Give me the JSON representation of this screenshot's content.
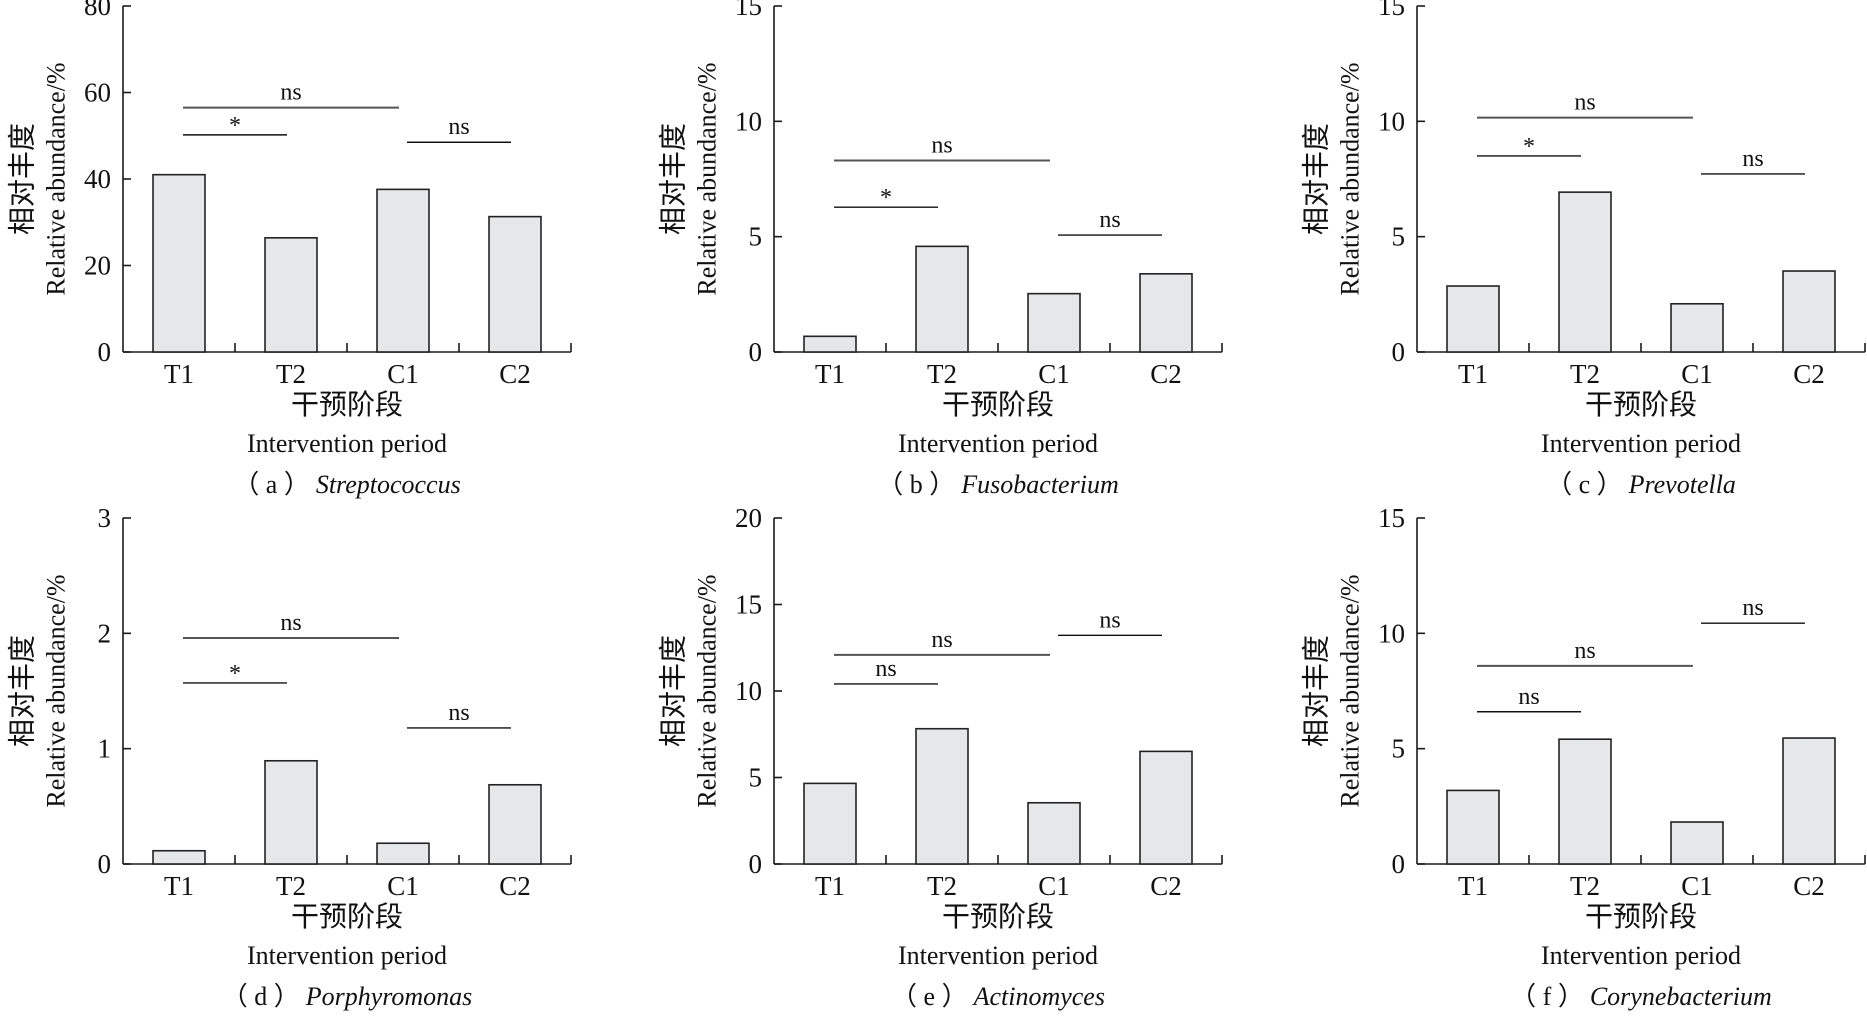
{
  "figure": {
    "bar_fill": "#e6e7e8",
    "bar_stroke": "#222222"
  },
  "chart_data": [
    {
      "type": "bar",
      "panel": "a",
      "caption_prefix": "（ a ）",
      "title": "Streptococcus",
      "xlabel_cn": "干预阶段",
      "xlabel": "Intervention period",
      "ylabel_cn": "相对丰度",
      "ylabel": "Relative abundance/%",
      "categories": [
        "T1",
        "T2",
        "C1",
        "C2"
      ],
      "values": [
        41.0,
        26.4,
        37.6,
        31.3
      ],
      "ylim": [
        0,
        80
      ],
      "yticks": [
        0,
        20,
        40,
        60,
        80
      ],
      "grid": false,
      "significance": [
        {
          "from": "T1",
          "to": "C1",
          "label": "ns",
          "y": 56.5
        },
        {
          "from": "T1",
          "to": "T2",
          "label": "*",
          "y": 50.2
        },
        {
          "from": "C1",
          "to": "C2",
          "label": "ns",
          "y": 48.5
        }
      ]
    },
    {
      "type": "bar",
      "panel": "b",
      "caption_prefix": "（ b ）",
      "title": "Fusobacterium",
      "xlabel_cn": "干预阶段",
      "xlabel": "Intervention period",
      "ylabel_cn": "相对丰度",
      "ylabel": "Relative abundance/%",
      "categories": [
        "T1",
        "T2",
        "C1",
        "C2"
      ],
      "values": [
        0.68,
        4.58,
        2.53,
        3.39
      ],
      "ylim": [
        0,
        15
      ],
      "yticks": [
        0,
        5,
        10,
        15
      ],
      "grid": false,
      "significance": [
        {
          "from": "T1",
          "to": "C1",
          "label": "ns",
          "y": 8.3
        },
        {
          "from": "T1",
          "to": "T2",
          "label": "*",
          "y": 6.28
        },
        {
          "from": "C1",
          "to": "C2",
          "label": "ns",
          "y": 5.07
        }
      ]
    },
    {
      "type": "bar",
      "panel": "c",
      "caption_prefix": "（ c ）",
      "title": "Prevotella",
      "xlabel_cn": "干预阶段",
      "xlabel": "Intervention period",
      "ylabel_cn": "相对丰度",
      "ylabel": "Relative abundance/%",
      "categories": [
        "T1",
        "T2",
        "C1",
        "C2"
      ],
      "values": [
        2.86,
        6.93,
        2.09,
        3.51
      ],
      "ylim": [
        0,
        15
      ],
      "yticks": [
        0,
        5,
        10,
        15
      ],
      "grid": false,
      "significance": [
        {
          "from": "T1",
          "to": "C1",
          "label": "ns",
          "y": 10.16
        },
        {
          "from": "T1",
          "to": "T2",
          "label": "*",
          "y": 8.5
        },
        {
          "from": "C1",
          "to": "C2",
          "label": "ns",
          "y": 7.72
        }
      ]
    },
    {
      "type": "bar",
      "panel": "d",
      "caption_prefix": "（ d ）",
      "title": "Porphyromonas",
      "xlabel_cn": "干预阶段",
      "xlabel": "Intervention period",
      "ylabel_cn": "相对丰度",
      "ylabel": "Relative abundance/%",
      "categories": [
        "T1",
        "T2",
        "C1",
        "C2"
      ],
      "values": [
        0.115,
        0.895,
        0.18,
        0.687
      ],
      "ylim": [
        0,
        3
      ],
      "yticks": [
        0,
        1,
        2,
        3
      ],
      "grid": false,
      "significance": [
        {
          "from": "T1",
          "to": "C1",
          "label": "ns",
          "y": 1.96
        },
        {
          "from": "T1",
          "to": "T2",
          "label": "*",
          "y": 1.57
        },
        {
          "from": "C1",
          "to": "C2",
          "label": "ns",
          "y": 1.18
        }
      ]
    },
    {
      "type": "bar",
      "panel": "e",
      "caption_prefix": "（ e ）",
      "title": "Actinomyces",
      "xlabel_cn": "干预阶段",
      "xlabel": "Intervention period",
      "ylabel_cn": "相对丰度",
      "ylabel": "Relative abundance/%",
      "categories": [
        "T1",
        "T2",
        "C1",
        "C2"
      ],
      "values": [
        4.66,
        7.82,
        3.54,
        6.51
      ],
      "ylim": [
        0,
        20
      ],
      "yticks": [
        0,
        5,
        10,
        15,
        20
      ],
      "grid": false,
      "significance": [
        {
          "from": "C1",
          "to": "C2",
          "label": "ns",
          "y": 13.22
        },
        {
          "from": "T1",
          "to": "C1",
          "label": "ns",
          "y": 12.09
        },
        {
          "from": "T1",
          "to": "T2",
          "label": "ns",
          "y": 10.41
        }
      ]
    },
    {
      "type": "bar",
      "panel": "f",
      "caption_prefix": "（ f ）",
      "title": "Corynebacterium",
      "xlabel_cn": "干预阶段",
      "xlabel": "Intervention period",
      "ylabel_cn": "相对丰度",
      "ylabel": "Relative abundance/%",
      "categories": [
        "T1",
        "T2",
        "C1",
        "C2"
      ],
      "values": [
        3.19,
        5.41,
        1.82,
        5.46
      ],
      "ylim": [
        0,
        15
      ],
      "yticks": [
        0,
        5,
        10,
        15
      ],
      "grid": false,
      "significance": [
        {
          "from": "C1",
          "to": "C2",
          "label": "ns",
          "y": 10.44
        },
        {
          "from": "T1",
          "to": "C1",
          "label": "ns",
          "y": 8.59
        },
        {
          "from": "T1",
          "to": "T2",
          "label": "ns",
          "y": 6.6
        }
      ]
    }
  ]
}
